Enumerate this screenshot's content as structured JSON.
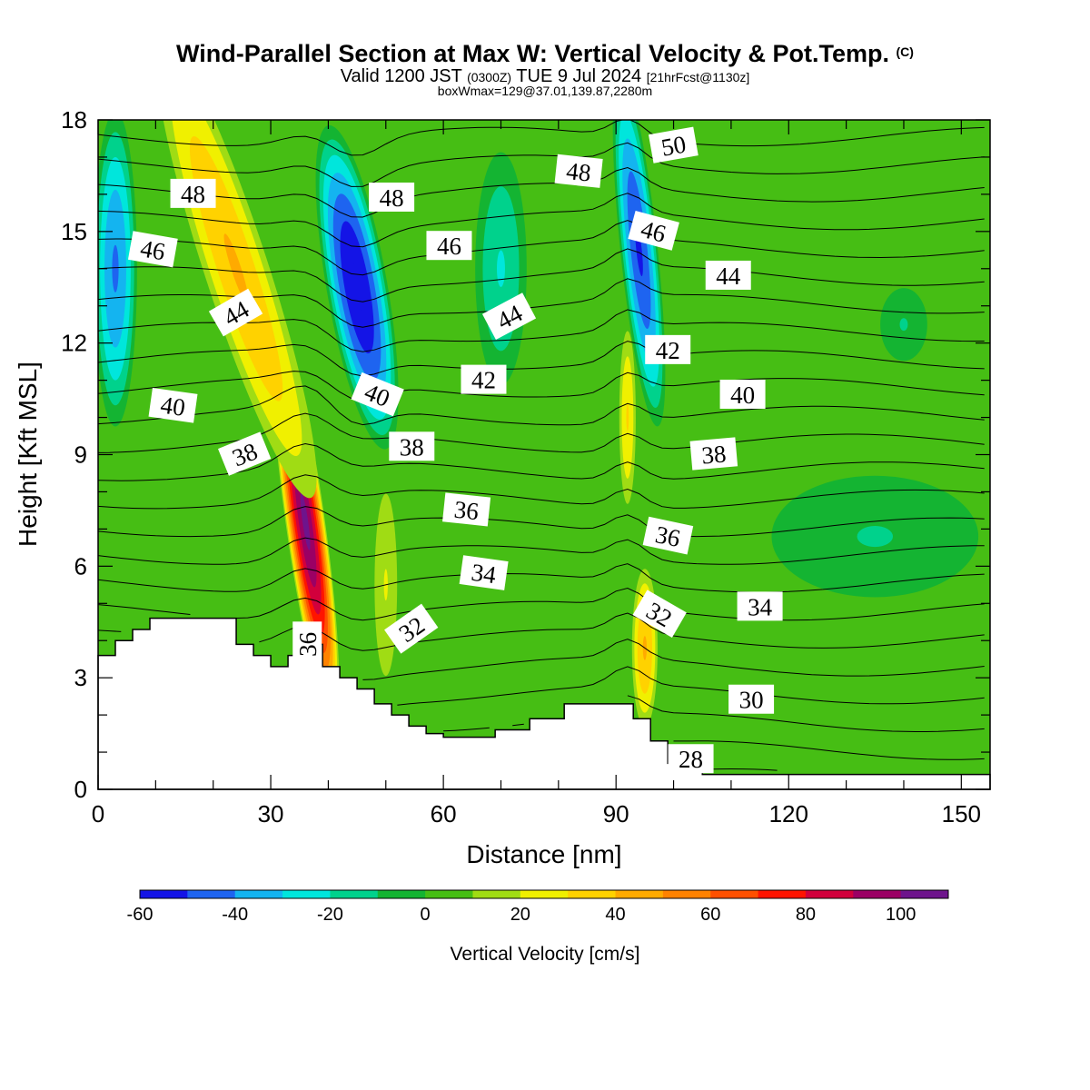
{
  "header": {
    "title": "Wind-Parallel Section at Max W: Vertical Velocity & Pot.Temp.",
    "title_mark": "(C)",
    "valid_a": "Valid 1200 JST",
    "valid_b": "(0300Z)",
    "valid_c": "TUE 9 Jul 2024",
    "valid_d": "[21hrFcst@1130z]",
    "box_info": "boxWmax=129@37.01,139.87,2280m"
  },
  "chart_data": {
    "type": "heatmap",
    "xlabel": "Distance [nm]",
    "ylabel": "Height [Kft MSL]",
    "xlim": [
      0,
      155
    ],
    "ylim": [
      0,
      18
    ],
    "xticks": [
      "0",
      "30",
      "60",
      "90",
      "120",
      "150"
    ],
    "yticks": [
      "0",
      "3",
      "6",
      "9",
      "12",
      "15",
      "18"
    ],
    "colorbar": {
      "title": "Vertical Velocity [cm/s]",
      "tick_labels": [
        "-60",
        "-40",
        "-20",
        "0",
        "20",
        "40",
        "60",
        "80",
        "100"
      ],
      "boundaries": [
        -60,
        -50,
        -40,
        -30,
        -20,
        -10,
        0,
        10,
        20,
        30,
        40,
        50,
        60,
        70,
        80,
        90,
        100,
        110
      ],
      "colors": [
        "#1414e6",
        "#1e64f0",
        "#14b4f0",
        "#00e6dc",
        "#00d28c",
        "#14b432",
        "#46be14",
        "#a0dc14",
        "#f0f000",
        "#ffd200",
        "#ffaa00",
        "#ff8200",
        "#ff5000",
        "#ff1400",
        "#d2003c",
        "#9b0064",
        "#6e148c"
      ]
    },
    "updrafts": [
      {
        "x": 36,
        "y": 7.2,
        "max_w": 100
      },
      {
        "x": 24,
        "y": 14.0,
        "max_w": 40
      },
      {
        "x": 92,
        "y": 10.0,
        "max_w": 30
      },
      {
        "x": 95,
        "y": 3.8,
        "max_w": 40
      },
      {
        "x": 50,
        "y": 5.5,
        "max_w": 20
      }
    ],
    "downdrafts": [
      {
        "x": 45,
        "y": 13.5,
        "min_w": -60
      },
      {
        "x": 94,
        "y": 14.5,
        "min_w": -50
      },
      {
        "x": 3,
        "y": 14.0,
        "min_w": -40
      },
      {
        "x": 70,
        "y": 14.0,
        "min_w": -20
      },
      {
        "x": 135,
        "y": 6.8,
        "min_w": -10
      },
      {
        "x": 140,
        "y": 12.5,
        "min_w": -10
      }
    ],
    "theta_contours": {
      "units": "C",
      "labels": [
        {
          "text": "48",
          "x": 16.5,
          "y": 16.0,
          "rotate": 0
        },
        {
          "text": "46",
          "x": 9.5,
          "y": 14.5,
          "rotate": 10
        },
        {
          "text": "44",
          "x": 24.0,
          "y": 12.8,
          "rotate": -30
        },
        {
          "text": "40",
          "x": 13.0,
          "y": 10.3,
          "rotate": 8
        },
        {
          "text": "38",
          "x": 25.5,
          "y": 9.0,
          "rotate": -22
        },
        {
          "text": "36",
          "x": 36.5,
          "y": 3.9,
          "rotate": -90
        },
        {
          "text": "48",
          "x": 51.0,
          "y": 15.9,
          "rotate": 0
        },
        {
          "text": "46",
          "x": 61.0,
          "y": 14.6,
          "rotate": 0
        },
        {
          "text": "40",
          "x": 48.5,
          "y": 10.6,
          "rotate": 22
        },
        {
          "text": "38",
          "x": 54.5,
          "y": 9.2,
          "rotate": 0
        },
        {
          "text": "44",
          "x": 71.5,
          "y": 12.7,
          "rotate": -28
        },
        {
          "text": "42",
          "x": 67.0,
          "y": 11.0,
          "rotate": 0
        },
        {
          "text": "36",
          "x": 64.0,
          "y": 7.5,
          "rotate": 6
        },
        {
          "text": "34",
          "x": 67.0,
          "y": 5.8,
          "rotate": 8
        },
        {
          "text": "32",
          "x": 54.5,
          "y": 4.3,
          "rotate": -35
        },
        {
          "text": "48",
          "x": 83.5,
          "y": 16.6,
          "rotate": 6
        },
        {
          "text": "50",
          "x": 100.0,
          "y": 17.3,
          "rotate": -10
        },
        {
          "text": "46",
          "x": 96.5,
          "y": 15.0,
          "rotate": 15
        },
        {
          "text": "44",
          "x": 109.5,
          "y": 13.8,
          "rotate": 0
        },
        {
          "text": "42",
          "x": 99.0,
          "y": 11.8,
          "rotate": 0
        },
        {
          "text": "40",
          "x": 112.0,
          "y": 10.6,
          "rotate": 0
        },
        {
          "text": "38",
          "x": 107.0,
          "y": 9.0,
          "rotate": -5
        },
        {
          "text": "36",
          "x": 99.0,
          "y": 6.8,
          "rotate": 12
        },
        {
          "text": "34",
          "x": 115.0,
          "y": 4.9,
          "rotate": 0
        },
        {
          "text": "32",
          "x": 97.5,
          "y": 4.7,
          "rotate": 30
        },
        {
          "text": "30",
          "x": 113.5,
          "y": 2.4,
          "rotate": 0
        },
        {
          "text": "28",
          "x": 103.0,
          "y": 0.8,
          "rotate": 0
        }
      ]
    },
    "terrain": {
      "x": [
        0,
        3,
        6,
        9,
        12,
        15,
        18,
        21,
        24,
        27,
        30,
        33,
        36,
        39,
        42,
        45,
        48,
        51,
        54,
        57,
        60,
        63,
        66,
        69,
        72,
        75,
        78,
        81,
        84,
        87,
        90,
        93,
        96,
        99,
        102,
        105,
        150,
        155
      ],
      "height": [
        3.6,
        4.0,
        4.3,
        4.6,
        4.6,
        4.6,
        4.6,
        4.6,
        3.9,
        3.6,
        3.3,
        3.6,
        3.9,
        3.3,
        3.0,
        2.7,
        2.3,
        2.0,
        1.7,
        1.5,
        1.4,
        1.4,
        1.4,
        1.6,
        1.6,
        1.9,
        1.9,
        2.3,
        2.3,
        2.3,
        2.3,
        1.9,
        1.3,
        0.7,
        0.5,
        0.4,
        0.4,
        0.4
      ]
    }
  }
}
